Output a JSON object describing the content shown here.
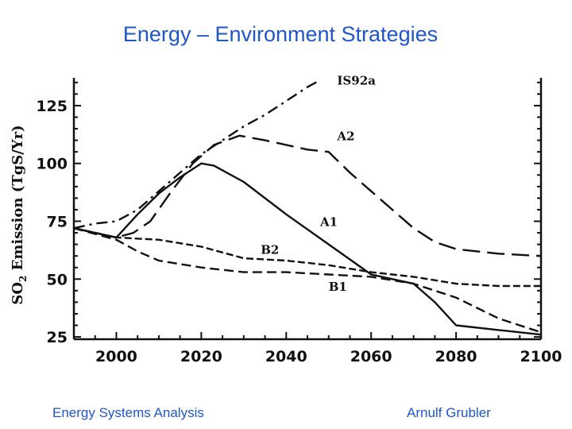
{
  "slide": {
    "title": "Energy – Environment Strategies",
    "footer_left": "Energy Systems Analysis",
    "footer_right": "Arnulf Grubler"
  },
  "chart_data": {
    "type": "line",
    "title": "",
    "xlabel": "",
    "ylabel_main": "SO",
    "ylabel_sub": "2",
    "ylabel_rest": " Emission (TgS/Yr)",
    "xlim": [
      1990,
      2100
    ],
    "ylim": [
      24,
      137
    ],
    "xticks": [
      2000,
      2020,
      2040,
      2060,
      2080,
      2100
    ],
    "yticks": [
      25,
      50,
      75,
      100,
      125
    ],
    "grid": false,
    "legend": "none",
    "series": [
      {
        "name": "IS92a",
        "dash": "dashdot",
        "label_at": [
          2052,
          134
        ],
        "points": [
          [
            1990,
            72
          ],
          [
            1995,
            74
          ],
          [
            2000,
            75
          ],
          [
            2005,
            80
          ],
          [
            2010,
            88
          ],
          [
            2015,
            96
          ],
          [
            2020,
            104
          ],
          [
            2025,
            110
          ],
          [
            2030,
            116
          ],
          [
            2035,
            121
          ],
          [
            2040,
            127
          ],
          [
            2045,
            133
          ],
          [
            2048,
            136
          ]
        ]
      },
      {
        "name": "A2",
        "dash": "longdash",
        "label_at": [
          2052,
          110
        ],
        "points": [
          [
            1990,
            72
          ],
          [
            1995,
            70
          ],
          [
            2000,
            68
          ],
          [
            2004,
            70
          ],
          [
            2008,
            75
          ],
          [
            2013,
            88
          ],
          [
            2018,
            100
          ],
          [
            2023,
            108
          ],
          [
            2029,
            112
          ],
          [
            2035,
            110
          ],
          [
            2040,
            108
          ],
          [
            2045,
            106
          ],
          [
            2050,
            105
          ],
          [
            2055,
            96
          ],
          [
            2060,
            88
          ],
          [
            2065,
            80
          ],
          [
            2070,
            72
          ],
          [
            2075,
            66
          ],
          [
            2080,
            63
          ],
          [
            2090,
            61
          ],
          [
            2100,
            60
          ]
        ]
      },
      {
        "name": "A1",
        "dash": "solid",
        "label_at": [
          2048,
          73
        ],
        "points": [
          [
            1990,
            72
          ],
          [
            1995,
            70
          ],
          [
            2000,
            68
          ],
          [
            2005,
            78
          ],
          [
            2010,
            87
          ],
          [
            2015,
            94
          ],
          [
            2020,
            100
          ],
          [
            2023,
            99
          ],
          [
            2030,
            92
          ],
          [
            2040,
            78
          ],
          [
            2050,
            65
          ],
          [
            2060,
            52
          ],
          [
            2065,
            50
          ],
          [
            2070,
            48
          ],
          [
            2075,
            40
          ],
          [
            2080,
            30
          ],
          [
            2090,
            28
          ],
          [
            2100,
            26
          ]
        ]
      },
      {
        "name": "B2",
        "dash": "shortdash",
        "label_at": [
          2034,
          61
        ],
        "points": [
          [
            1990,
            72
          ],
          [
            2000,
            68
          ],
          [
            2010,
            67
          ],
          [
            2020,
            64
          ],
          [
            2030,
            59
          ],
          [
            2040,
            58
          ],
          [
            2050,
            56
          ],
          [
            2060,
            53
          ],
          [
            2070,
            51
          ],
          [
            2080,
            48
          ],
          [
            2090,
            47
          ],
          [
            2100,
            47
          ]
        ]
      },
      {
        "name": "B1",
        "dash": "mediumdash",
        "label_at": [
          2050,
          45
        ],
        "points": [
          [
            1990,
            72
          ],
          [
            2000,
            67
          ],
          [
            2005,
            62
          ],
          [
            2010,
            58
          ],
          [
            2020,
            55
          ],
          [
            2030,
            53
          ],
          [
            2040,
            53
          ],
          [
            2050,
            52
          ],
          [
            2060,
            51
          ],
          [
            2070,
            48
          ],
          [
            2080,
            42
          ],
          [
            2090,
            33
          ],
          [
            2100,
            27
          ]
        ]
      }
    ]
  }
}
